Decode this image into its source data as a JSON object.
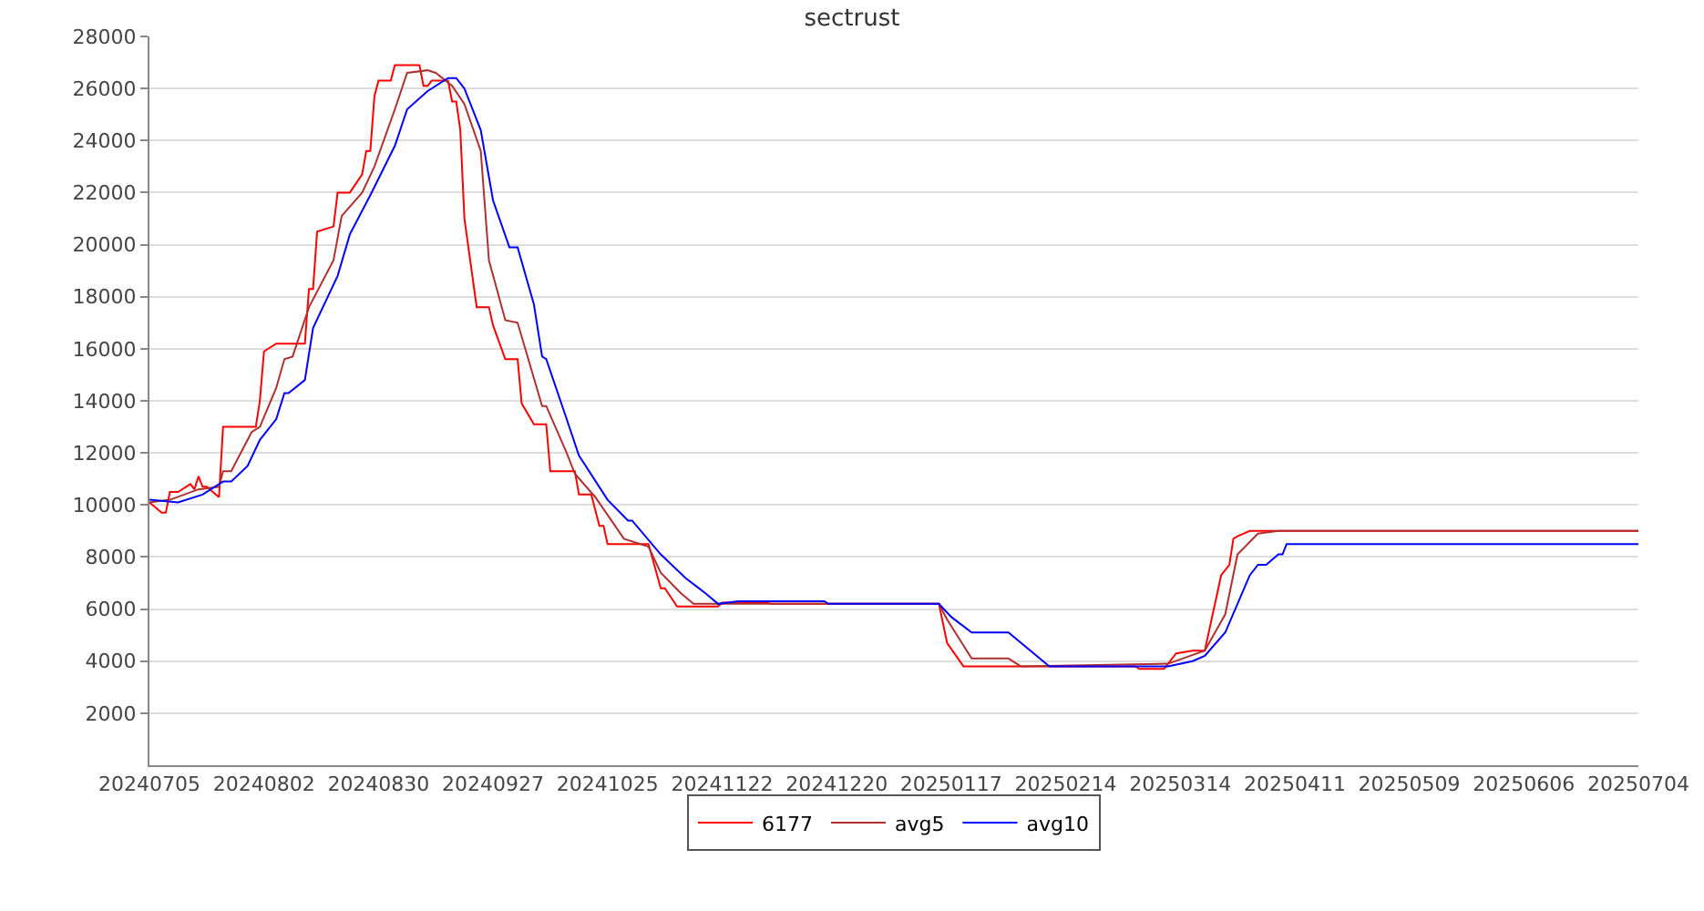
{
  "chart_data": {
    "type": "line",
    "title": "sectrust",
    "xlim": [
      "2024-07-05",
      "2025-07-04"
    ],
    "xticks": [
      {
        "value": "2024-07-05",
        "label": "20240705"
      },
      {
        "value": "2024-08-02",
        "label": "20240802"
      },
      {
        "value": "2024-08-30",
        "label": "20240830"
      },
      {
        "value": "2024-09-27",
        "label": "20240927"
      },
      {
        "value": "2024-10-25",
        "label": "20241025"
      },
      {
        "value": "2024-11-22",
        "label": "20241122"
      },
      {
        "value": "2024-12-20",
        "label": "20241220"
      },
      {
        "value": "2025-01-17",
        "label": "20250117"
      },
      {
        "value": "2025-02-14",
        "label": "20250214"
      },
      {
        "value": "2025-03-14",
        "label": "20250314"
      },
      {
        "value": "2025-04-11",
        "label": "20250411"
      },
      {
        "value": "2025-05-09",
        "label": "20250509"
      },
      {
        "value": "2025-06-06",
        "label": "20250606"
      },
      {
        "value": "2025-07-04",
        "label": "20250704"
      }
    ],
    "ylim": [
      0,
      28000
    ],
    "yticks": [
      2000,
      4000,
      6000,
      8000,
      10000,
      12000,
      14000,
      16000,
      18000,
      20000,
      22000,
      24000,
      26000,
      28000
    ],
    "grid": "y",
    "legend": "bottom",
    "marker": "none",
    "line_style": "solid",
    "series": [
      {
        "name": "6177",
        "color": "#ff0000",
        "x": [
          "2024-07-05",
          "2024-07-08",
          "2024-07-09",
          "2024-07-10",
          "2024-07-12",
          "2024-07-15",
          "2024-07-16",
          "2024-07-17",
          "2024-07-18",
          "2024-07-19",
          "2024-07-22",
          "2024-07-23",
          "2024-07-31",
          "2024-08-01",
          "2024-08-02",
          "2024-08-05",
          "2024-08-12",
          "2024-08-13",
          "2024-08-14",
          "2024-08-15",
          "2024-08-19",
          "2024-08-20",
          "2024-08-23",
          "2024-08-26",
          "2024-08-27",
          "2024-08-28",
          "2024-08-29",
          "2024-08-30",
          "2024-09-02",
          "2024-09-03",
          "2024-09-09",
          "2024-09-10",
          "2024-09-11",
          "2024-09-12",
          "2024-09-16",
          "2024-09-17",
          "2024-09-18",
          "2024-09-19",
          "2024-09-20",
          "2024-09-23",
          "2024-09-26",
          "2024-09-27",
          "2024-09-30",
          "2024-10-03",
          "2024-10-04",
          "2024-10-07",
          "2024-10-10",
          "2024-10-11",
          "2024-10-17",
          "2024-10-18",
          "2024-10-21",
          "2024-10-23",
          "2024-10-24",
          "2024-10-25",
          "2024-11-04",
          "2024-11-07",
          "2024-11-08",
          "2024-11-11",
          "2024-11-21",
          "2024-11-22",
          "2024-12-03",
          "2024-12-04",
          "2025-01-14",
          "2025-01-16",
          "2025-01-20",
          "2025-03-03",
          "2025-03-04",
          "2025-03-10",
          "2025-03-11",
          "2025-03-13",
          "2025-03-17",
          "2025-03-20",
          "2025-03-24",
          "2025-03-26",
          "2025-03-27",
          "2025-03-28",
          "2025-03-31",
          "2025-07-04"
        ],
        "values": [
          10100,
          9700,
          9700,
          10500,
          10500,
          10800,
          10600,
          11100,
          10700,
          10700,
          10300,
          13000,
          13000,
          14000,
          15900,
          16200,
          16200,
          18300,
          18300,
          20500,
          20700,
          22000,
          22000,
          22700,
          23600,
          23600,
          25700,
          26300,
          26300,
          26900,
          26900,
          26100,
          26100,
          26300,
          26300,
          25500,
          25500,
          24400,
          21000,
          17600,
          17600,
          16900,
          15600,
          15600,
          13900,
          13100,
          13100,
          11300,
          11300,
          10400,
          10400,
          9200,
          9200,
          8500,
          8500,
          6800,
          6800,
          6100,
          6100,
          6250,
          6250,
          6200,
          6200,
          4700,
          3800,
          3800,
          3700,
          3700,
          3900,
          4300,
          4400,
          4400,
          7300,
          7700,
          8700,
          8800,
          9000,
          9000
        ]
      },
      {
        "name": "avg5",
        "color": "#b03030",
        "x": [
          "2024-07-05",
          "2024-07-10",
          "2024-07-17",
          "2024-07-22",
          "2024-07-23",
          "2024-07-25",
          "2024-07-30",
          "2024-08-01",
          "2024-08-05",
          "2024-08-07",
          "2024-08-09",
          "2024-08-13",
          "2024-08-19",
          "2024-08-21",
          "2024-08-26",
          "2024-08-29",
          "2024-09-03",
          "2024-09-06",
          "2024-09-11",
          "2024-09-13",
          "2024-09-17",
          "2024-09-20",
          "2024-09-24",
          "2024-09-26",
          "2024-09-30",
          "2024-10-03",
          "2024-10-09",
          "2024-10-10",
          "2024-10-15",
          "2024-10-17",
          "2024-10-22",
          "2024-10-29",
          "2024-11-04",
          "2024-11-07",
          "2024-11-12",
          "2024-11-15",
          "2025-01-14",
          "2025-01-16",
          "2025-01-22",
          "2025-01-31",
          "2025-02-03",
          "2025-03-11",
          "2025-03-20",
          "2025-03-25",
          "2025-03-28",
          "2025-04-02",
          "2025-04-07",
          "2025-07-04"
        ],
        "values": [
          10100,
          10200,
          10600,
          10700,
          11300,
          11300,
          12800,
          13000,
          14500,
          15600,
          15700,
          17600,
          19400,
          21100,
          22000,
          23000,
          25200,
          26600,
          26700,
          26600,
          26100,
          25400,
          23600,
          19400,
          17100,
          17000,
          13800,
          13800,
          12000,
          11200,
          10300,
          8700,
          8400,
          7400,
          6600,
          6200,
          6200,
          5600,
          4100,
          4100,
          3800,
          3900,
          4400,
          5800,
          8100,
          8900,
          9000,
          9000
        ]
      },
      {
        "name": "avg10",
        "color": "#0000ff",
        "x": [
          "2024-07-05",
          "2024-07-12",
          "2024-07-18",
          "2024-07-23",
          "2024-07-25",
          "2024-07-29",
          "2024-08-01",
          "2024-08-05",
          "2024-08-07",
          "2024-08-08",
          "2024-08-12",
          "2024-08-14",
          "2024-08-20",
          "2024-08-23",
          "2024-08-28",
          "2024-09-03",
          "2024-09-06",
          "2024-09-11",
          "2024-09-16",
          "2024-09-18",
          "2024-09-20",
          "2024-09-24",
          "2024-09-26",
          "2024-09-27",
          "2024-10-01",
          "2024-10-03",
          "2024-10-07",
          "2024-10-09",
          "2024-10-10",
          "2024-10-15",
          "2024-10-18",
          "2024-10-25",
          "2024-10-30",
          "2024-10-31",
          "2024-11-07",
          "2024-11-13",
          "2024-11-18",
          "2024-11-21",
          "2024-11-26",
          "2024-12-17",
          "2024-12-18",
          "2025-01-14",
          "2025-01-17",
          "2025-01-22",
          "2025-01-31",
          "2025-02-10",
          "2025-03-11",
          "2025-03-17",
          "2025-03-20",
          "2025-03-25",
          "2025-03-31",
          "2025-04-02",
          "2025-04-04",
          "2025-04-07",
          "2025-04-08",
          "2025-04-09",
          "2025-07-04"
        ],
        "values": [
          10200,
          10100,
          10400,
          10900,
          10900,
          11500,
          12500,
          13300,
          14300,
          14300,
          14800,
          16800,
          18800,
          20400,
          21900,
          23800,
          25200,
          25900,
          26400,
          26400,
          26000,
          24400,
          22600,
          21700,
          19900,
          19900,
          17700,
          15700,
          15600,
          13300,
          11900,
          10200,
          9400,
          9400,
          8100,
          7200,
          6600,
          6200,
          6300,
          6300,
          6200,
          6200,
          5700,
          5100,
          5100,
          3800,
          3800,
          4000,
          4200,
          5100,
          7300,
          7700,
          7700,
          8100,
          8100,
          8500,
          8500
        ]
      }
    ]
  }
}
